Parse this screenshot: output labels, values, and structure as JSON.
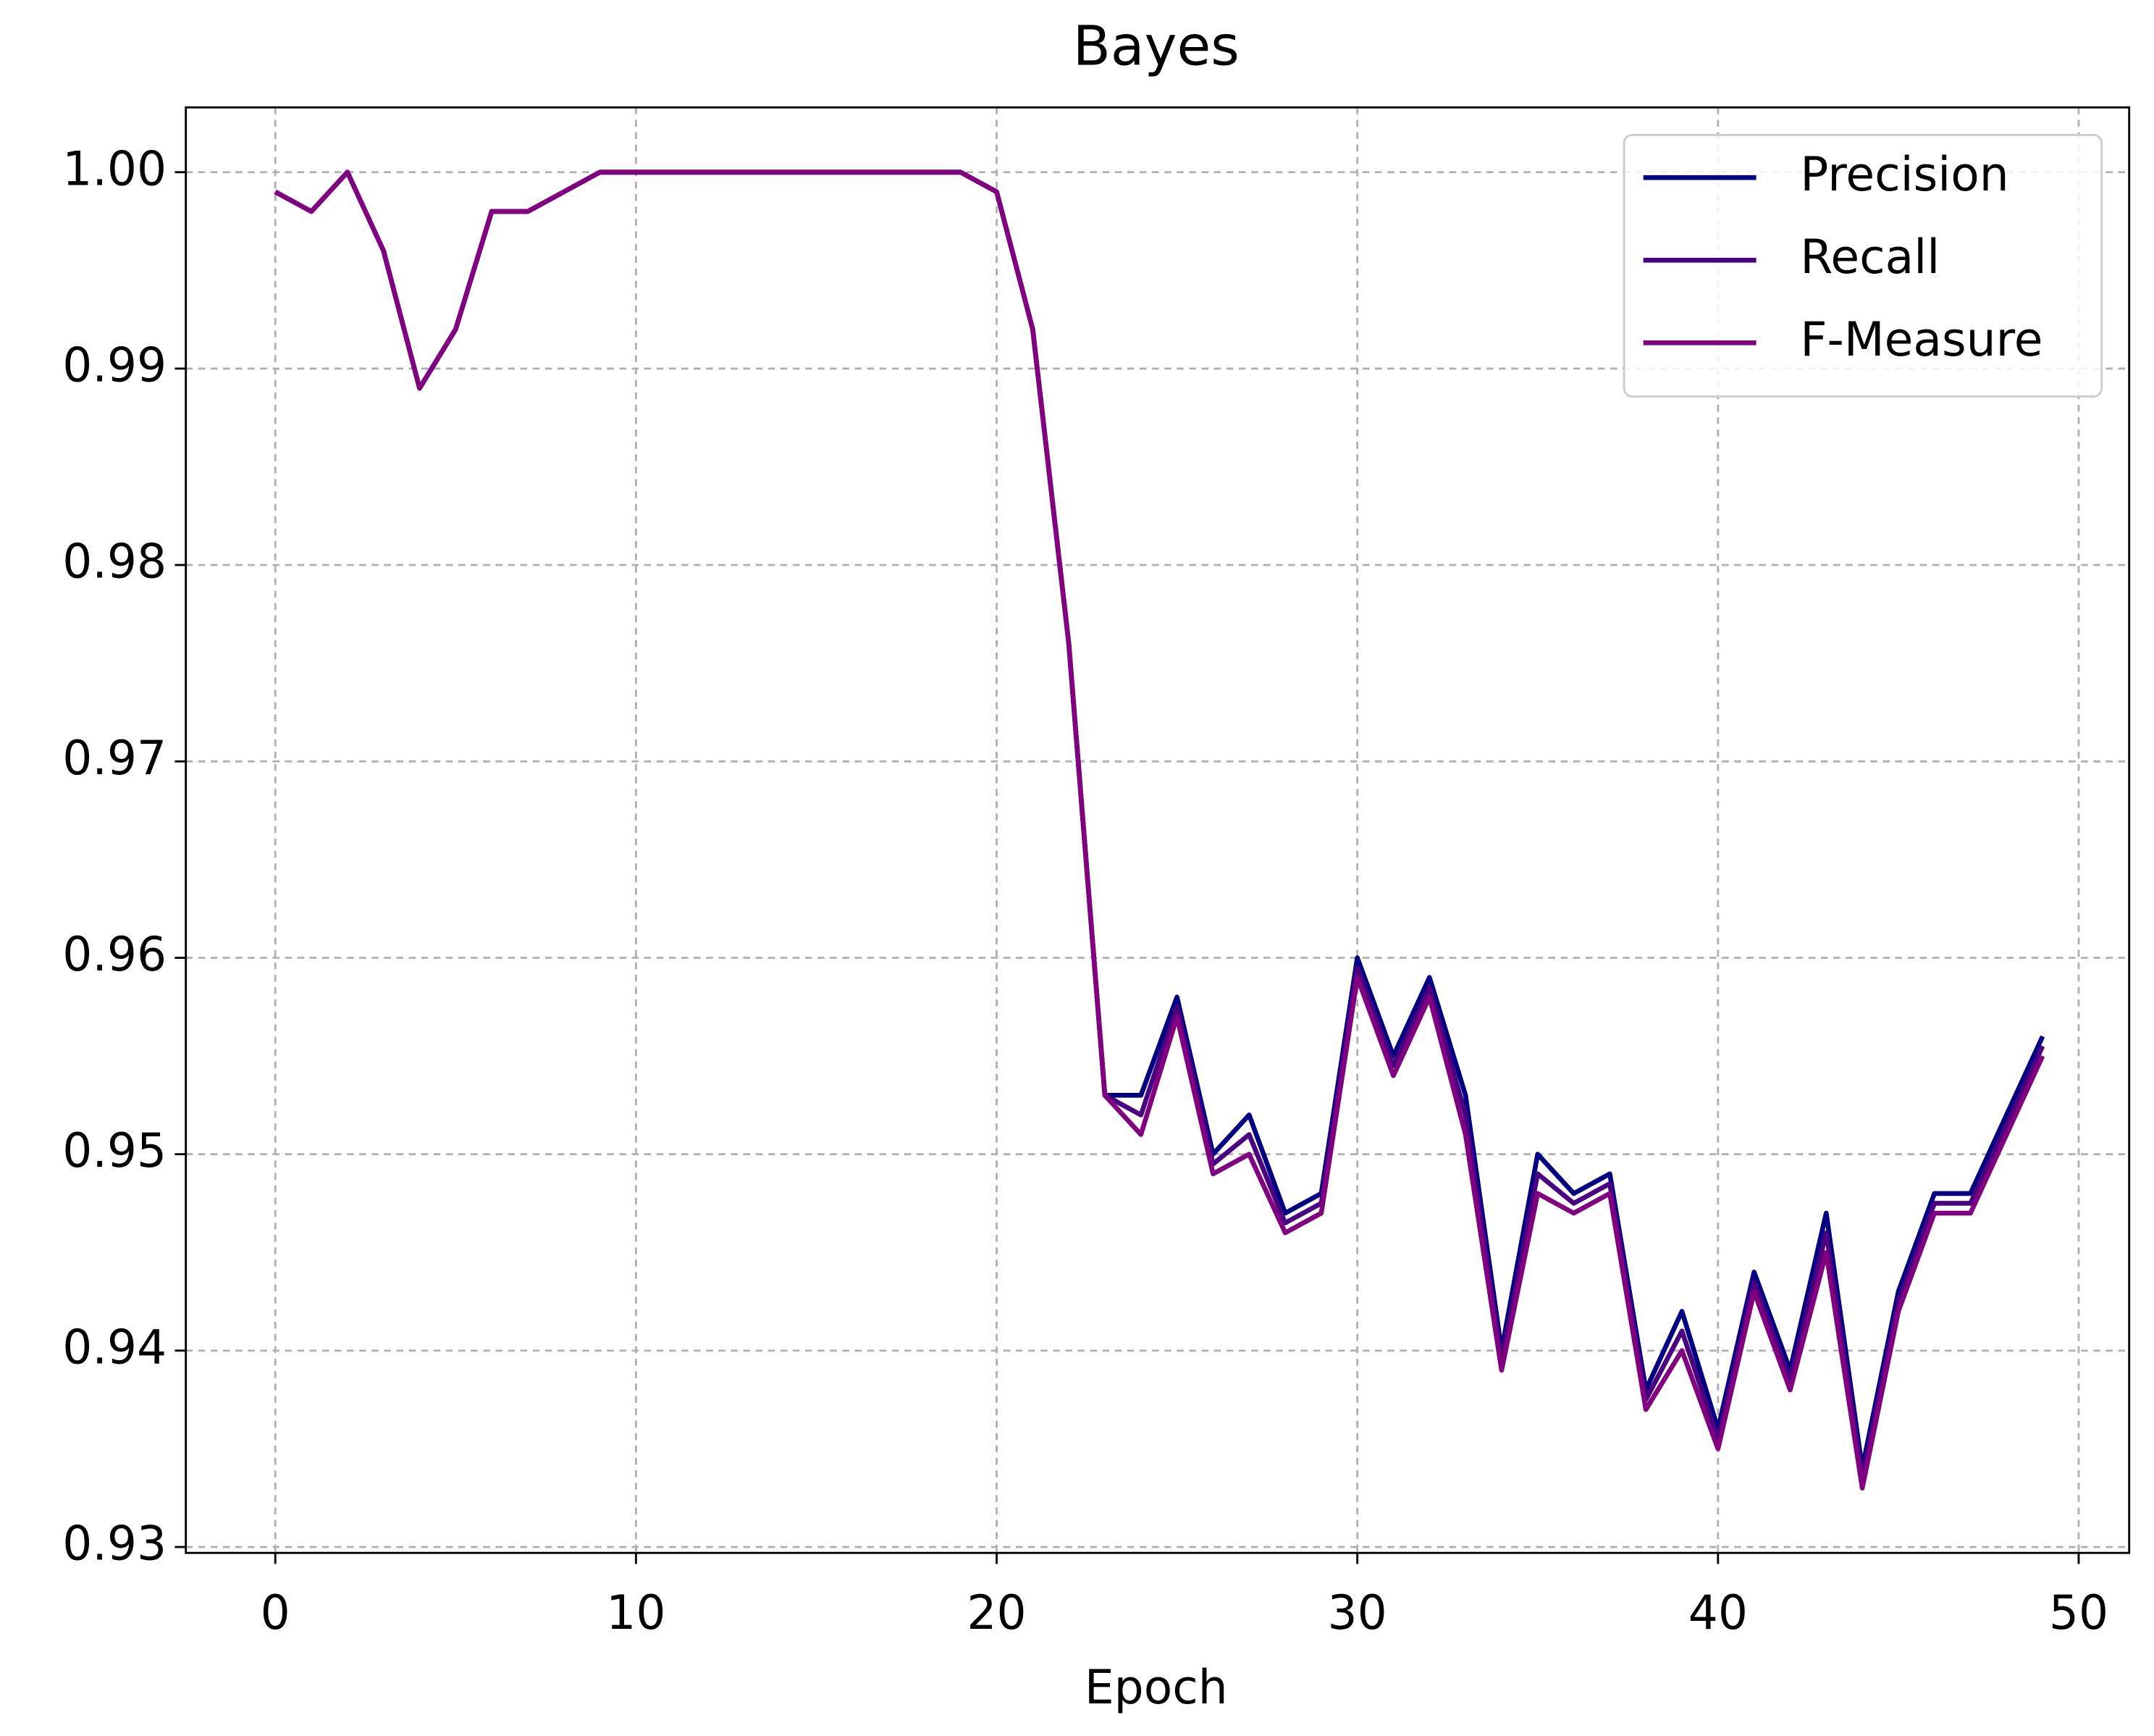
{
  "chart_data": {
    "type": "line",
    "title": "Bayes",
    "x_label": "Epoch",
    "x": [
      0,
      1,
      2,
      3,
      4,
      5,
      6,
      7,
      8,
      9,
      10,
      11,
      12,
      13,
      14,
      15,
      16,
      17,
      18,
      19,
      20,
      21,
      22,
      23,
      24,
      25,
      26,
      27,
      28,
      29,
      30,
      31,
      32,
      33,
      34,
      35,
      36,
      37,
      38,
      39,
      40,
      41,
      42,
      43,
      44,
      45,
      46,
      47,
      48,
      49
    ],
    "series": [
      {
        "name": "Precision",
        "color": "#000080",
        "values": [
          0.999,
          0.998,
          1.0,
          0.996,
          0.989,
          0.992,
          0.998,
          0.998,
          0.999,
          1.0,
          1.0,
          1.0,
          1.0,
          1.0,
          1.0,
          1.0,
          1.0,
          1.0,
          1.0,
          1.0,
          0.999,
          0.992,
          0.976,
          0.953,
          0.953,
          0.958,
          0.95,
          0.952,
          0.947,
          0.948,
          0.96,
          0.955,
          0.959,
          0.953,
          0.94,
          0.95,
          0.948,
          0.949,
          0.938,
          0.942,
          0.936,
          0.944,
          0.939,
          0.947,
          0.934,
          0.943,
          0.948,
          0.948,
          0.952,
          0.956
        ]
      },
      {
        "name": "Recall",
        "color": "#4b0082",
        "values": [
          0.999,
          0.998,
          1.0,
          0.996,
          0.989,
          0.992,
          0.998,
          0.998,
          0.999,
          1.0,
          1.0,
          1.0,
          1.0,
          1.0,
          1.0,
          1.0,
          1.0,
          1.0,
          1.0,
          1.0,
          0.999,
          0.992,
          0.976,
          0.953,
          0.952,
          0.9575,
          0.9495,
          0.951,
          0.9465,
          0.9475,
          0.9595,
          0.9545,
          0.9585,
          0.952,
          0.9395,
          0.949,
          0.9475,
          0.9485,
          0.9375,
          0.941,
          0.9355,
          0.9435,
          0.9385,
          0.946,
          0.9335,
          0.9425,
          0.9475,
          0.9475,
          0.9515,
          0.9555
        ]
      },
      {
        "name": "F-Measure",
        "color": "#800080",
        "values": [
          0.999,
          0.998,
          1.0,
          0.996,
          0.989,
          0.992,
          0.998,
          0.998,
          0.999,
          1.0,
          1.0,
          1.0,
          1.0,
          1.0,
          1.0,
          1.0,
          1.0,
          1.0,
          1.0,
          1.0,
          0.999,
          0.992,
          0.976,
          0.953,
          0.951,
          0.957,
          0.949,
          0.95,
          0.946,
          0.947,
          0.959,
          0.954,
          0.958,
          0.951,
          0.939,
          0.948,
          0.947,
          0.948,
          0.937,
          0.94,
          0.935,
          0.943,
          0.938,
          0.945,
          0.933,
          0.942,
          0.947,
          0.947,
          0.951,
          0.955
        ]
      }
    ],
    "xlim": [
      -2.48,
      51.4
    ],
    "xticks": [
      0,
      10,
      20,
      30,
      40,
      50
    ],
    "ylim": [
      0.9297,
      1.0033
    ],
    "yticks": [
      {
        "value": 0.93,
        "label": "0.93"
      },
      {
        "value": 0.94,
        "label": "0.94"
      },
      {
        "value": 0.95,
        "label": "0.95"
      },
      {
        "value": 0.96,
        "label": "0.96"
      },
      {
        "value": 0.97,
        "label": "0.97"
      },
      {
        "value": 0.98,
        "label": "0.98"
      },
      {
        "value": 0.99,
        "label": "0.99"
      },
      {
        "value": 1.0,
        "label": "1.00"
      }
    ],
    "grid": true,
    "legend": "upper right"
  }
}
